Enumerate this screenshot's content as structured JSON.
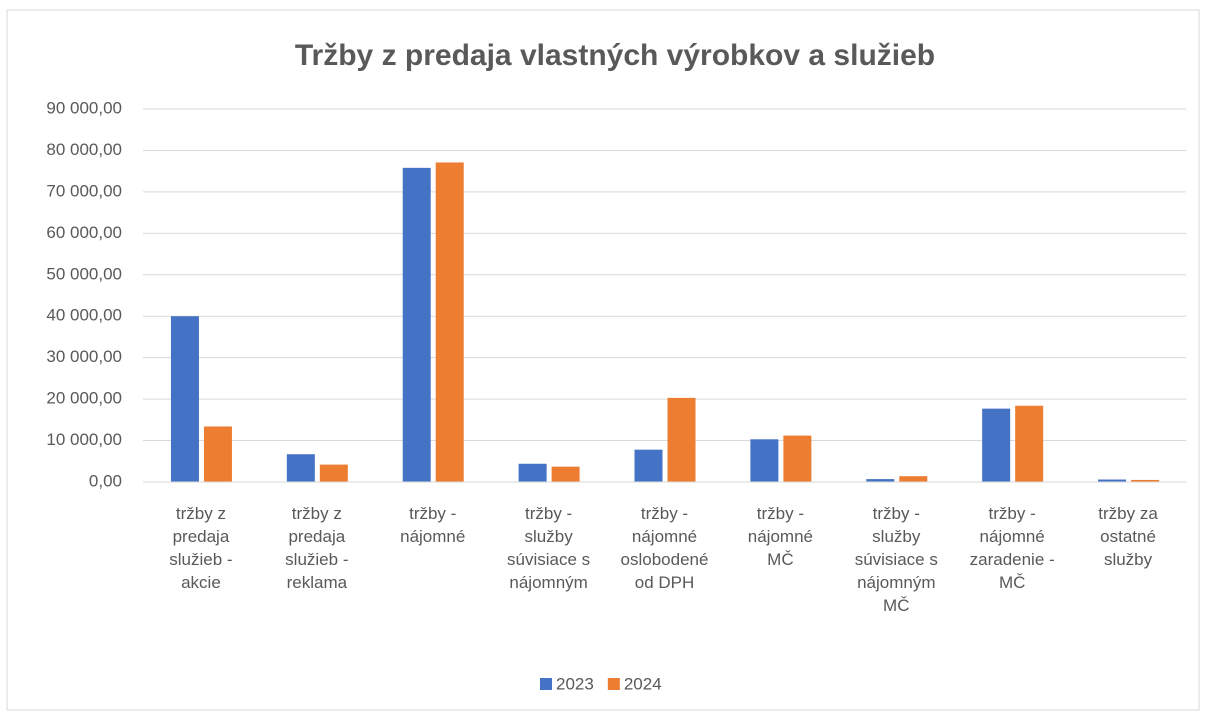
{
  "chart_data": {
    "type": "bar",
    "title": "Tržby z predaja vlastných výrobkov a služieb",
    "categories": [
      "tržby z predaja služieb - akcie",
      "tržby z predaja služieb - reklama",
      "tržby - nájomné",
      "tržby - služby súvisiace s nájomným",
      "tržby - nájomné oslobodené od DPH",
      "tržby - nájomné MČ",
      "tržby - služby súvisiace s nájomným MČ",
      "tržby - nájomné zaradenie - MČ",
      "tržby za ostatné služby"
    ],
    "series": [
      {
        "name": "2023",
        "color": "#4472c4",
        "values": [
          40000,
          6700,
          75800,
          4400,
          7800,
          10300,
          700,
          17700,
          600
        ]
      },
      {
        "name": "2024",
        "color": "#ed7d31",
        "values": [
          13400,
          4200,
          77100,
          3700,
          20300,
          11200,
          1400,
          18400,
          500
        ]
      }
    ],
    "ylim": [
      0,
      90000
    ],
    "yticks": [
      {
        "value": 0,
        "label": "0,00"
      },
      {
        "value": 10000,
        "label": "10 000,00"
      },
      {
        "value": 20000,
        "label": "20 000,00"
      },
      {
        "value": 30000,
        "label": "30 000,00"
      },
      {
        "value": 40000,
        "label": "40 000,00"
      },
      {
        "value": 50000,
        "label": "50 000,00"
      },
      {
        "value": 60000,
        "label": "60 000,00"
      },
      {
        "value": 70000,
        "label": "70 000,00"
      },
      {
        "value": 80000,
        "label": "80 000,00"
      },
      {
        "value": 90000,
        "label": "90 000,00"
      }
    ],
    "grid": true,
    "legend": "bottom"
  }
}
